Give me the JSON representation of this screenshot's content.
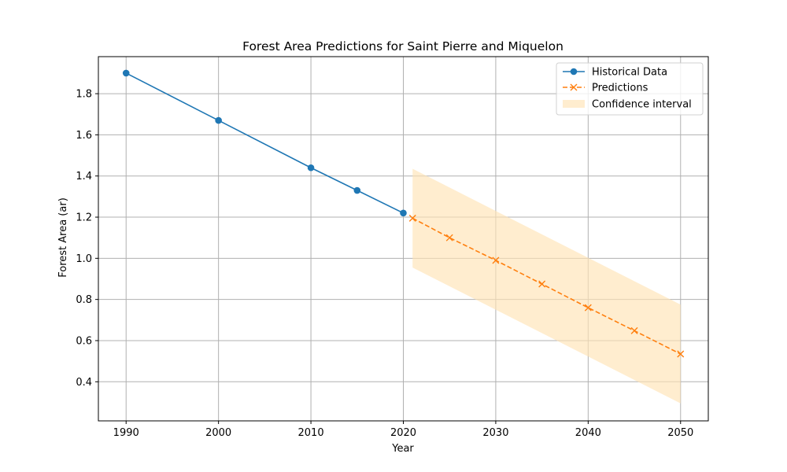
{
  "chart_data": {
    "type": "line",
    "title": "Forest Area Predictions for Saint Pierre and Miquelon",
    "xlabel": "Year",
    "ylabel": "Forest Area (ar)",
    "xlim": [
      1987,
      2053
    ],
    "ylim": [
      0.21,
      1.98
    ],
    "xticks": [
      1990,
      2000,
      2010,
      2020,
      2030,
      2040,
      2050
    ],
    "yticks": [
      0.4,
      0.6,
      0.8,
      1.0,
      1.2,
      1.4,
      1.6,
      1.8
    ],
    "ytick_labels": [
      "0.4",
      "0.6",
      "0.8",
      "1.0",
      "1.2",
      "1.4",
      "1.6",
      "1.8"
    ],
    "grid": true,
    "legend_position": "top-right",
    "series": [
      {
        "name": "Historical Data",
        "style": "solid",
        "marker": "circle",
        "color": "#1f77b4",
        "x": [
          1990,
          2000,
          2010,
          2015,
          2020
        ],
        "y": [
          1.9,
          1.67,
          1.44,
          1.33,
          1.22
        ]
      },
      {
        "name": "Predictions",
        "style": "dashed",
        "marker": "x",
        "color": "#ff7f0e",
        "x": [
          2021,
          2025,
          2030,
          2035,
          2040,
          2045,
          2050
        ],
        "y": [
          1.195,
          1.1,
          0.99,
          0.875,
          0.76,
          0.648,
          0.535
        ]
      }
    ],
    "confidence_interval": {
      "name": "Confidence interval",
      "color": "#ffe4b5",
      "x": [
        2021,
        2050
      ],
      "lower": [
        0.955,
        0.295
      ],
      "upper": [
        1.435,
        0.775
      ]
    }
  }
}
